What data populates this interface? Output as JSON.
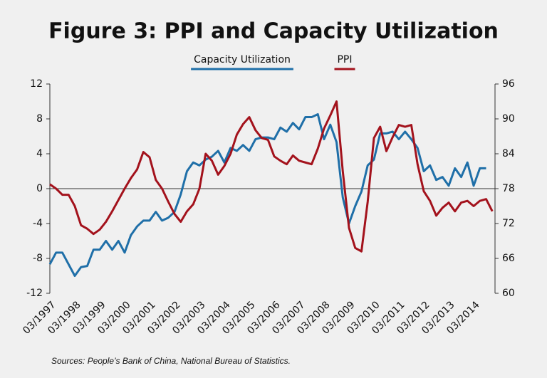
{
  "chart_data": {
    "type": "line",
    "title": "Figure 3: PPI and Capacity Utilization",
    "source": "Sources: People’s Bank of China, National Bureau of Statistics.",
    "categories": [
      "03/1997",
      null,
      null,
      null,
      "03/1998",
      null,
      null,
      null,
      "03/1999",
      null,
      null,
      null,
      "03/2000",
      null,
      null,
      null,
      "03/2001",
      null,
      null,
      null,
      "03/2002",
      null,
      null,
      null,
      "03/2003",
      null,
      null,
      null,
      "03/2004",
      null,
      null,
      null,
      "03/2005",
      null,
      null,
      null,
      "03/2006",
      null,
      null,
      null,
      "03/2007",
      null,
      null,
      null,
      "03/2008",
      null,
      null,
      null,
      "03/2009",
      null,
      null,
      null,
      "03/2010",
      null,
      null,
      null,
      "03/2011",
      null,
      null,
      null,
      "03/2012",
      null,
      null,
      null,
      "03/2013",
      null,
      null,
      null,
      "03/2014",
      null,
      null,
      null
    ],
    "series": [
      {
        "name": "Capacity Utilization",
        "color": "#1f6fa8",
        "axis": "y2",
        "values": [
          65,
          67,
          67,
          65,
          63,
          64.5,
          64.7,
          67.5,
          67.5,
          69,
          67.5,
          69,
          67,
          70,
          71.5,
          72.5,
          72.5,
          74,
          72.5,
          73,
          74,
          77,
          81,
          82.5,
          82,
          83,
          83.5,
          84.5,
          82.5,
          85,
          84.5,
          85.5,
          84.5,
          86.5,
          86.8,
          86.8,
          86.5,
          88.5,
          87.8,
          89.3,
          88.2,
          90.3,
          90.3,
          90.8,
          86.5,
          89,
          86,
          76.5,
          72,
          75,
          77.5,
          82,
          83,
          87.5,
          87.5,
          87.8,
          86.5,
          87.8,
          86.5,
          85,
          81,
          82,
          79.5,
          80,
          78.5,
          81.5,
          80,
          82.5,
          78.5,
          81.5,
          81.5,
          null
        ]
      },
      {
        "name": "PPI",
        "color": "#a3121c",
        "values": [
          0.5,
          0,
          -0.7,
          -0.7,
          -2,
          -4.2,
          -4.6,
          -5.2,
          -4.7,
          -3.8,
          -2.6,
          -1.3,
          0,
          1.2,
          2.2,
          4.2,
          3.6,
          1,
          0,
          -1.5,
          -2.9,
          -3.8,
          -2.6,
          -1.8,
          0,
          4,
          3.2,
          1.6,
          2.6,
          4,
          6.2,
          7.4,
          8.2,
          6.7,
          5.8,
          5.6,
          3.7,
          3.2,
          2.8,
          3.8,
          3.2,
          3,
          2.8,
          4.6,
          6.9,
          8.4,
          10,
          2,
          -4.5,
          -6.8,
          -7.2,
          -1.5,
          5.8,
          7.1,
          4.3,
          5.9,
          7.3,
          7.1,
          7.3,
          2.8,
          -0.3,
          -1.4,
          -3.1,
          -2.2,
          -1.6,
          -2.6,
          -1.6,
          -1.4,
          -2,
          -1.4,
          -1.2,
          -2.6
        ]
      }
    ],
    "ylim": [
      -12,
      12
    ],
    "yticks": [
      -12,
      -8,
      -4,
      0,
      4,
      8,
      12
    ],
    "y2lim": [
      60,
      96
    ],
    "y2ticks": [
      60,
      66,
      72,
      78,
      84,
      90,
      96
    ]
  }
}
